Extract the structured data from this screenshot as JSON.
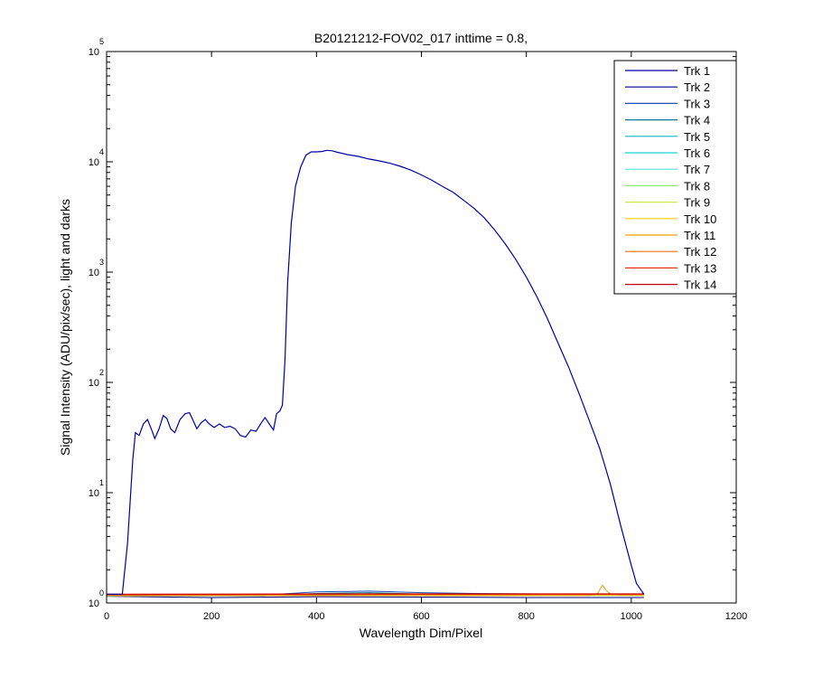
{
  "chart_data": {
    "type": "line",
    "title": "B20121212-FOV02_017 inttime = 0.8,",
    "xlabel": "Wavelength Dim/Pixel",
    "ylabel": "Signal Intensity (ADU/pix/sec), light and darks",
    "xlim": [
      0,
      1200
    ],
    "ylim": [
      1,
      100000
    ],
    "yscale": "log",
    "xticks": [
      0,
      200,
      400,
      600,
      800,
      1000,
      1200
    ],
    "xtick_labels": [
      "0",
      "200",
      "400",
      "600",
      "800",
      "1000",
      "1200"
    ],
    "ytick_labels": [
      {
        "base": "10",
        "exp": "0",
        "value": 1
      },
      {
        "base": "10",
        "exp": "1",
        "value": 10
      },
      {
        "base": "10",
        "exp": "2",
        "value": 100
      },
      {
        "base": "10",
        "exp": "3",
        "value": 1000
      },
      {
        "base": "10",
        "exp": "4",
        "value": 10000
      },
      {
        "base": "10",
        "exp": "5",
        "value": 100000
      }
    ],
    "grid": false,
    "legend_position": "top-right",
    "series": [
      {
        "name": "Trk 1",
        "color": "#0000a0",
        "points": [
          [
            0,
            1.2
          ],
          [
            30,
            1.2
          ],
          [
            40,
            3.5
          ],
          [
            50,
            20
          ],
          [
            55,
            35
          ],
          [
            62,
            33
          ],
          [
            70,
            42
          ],
          [
            78,
            46
          ],
          [
            85,
            38
          ],
          [
            92,
            31
          ],
          [
            100,
            38
          ],
          [
            108,
            50
          ],
          [
            115,
            47
          ],
          [
            122,
            38
          ],
          [
            130,
            35
          ],
          [
            140,
            46
          ],
          [
            150,
            52
          ],
          [
            158,
            53
          ],
          [
            165,
            45
          ],
          [
            172,
            38
          ],
          [
            180,
            43
          ],
          [
            188,
            46
          ],
          [
            196,
            42
          ],
          [
            205,
            39
          ],
          [
            215,
            42
          ],
          [
            225,
            39
          ],
          [
            235,
            40
          ],
          [
            245,
            38
          ],
          [
            255,
            33
          ],
          [
            265,
            32
          ],
          [
            275,
            37
          ],
          [
            285,
            36
          ],
          [
            295,
            43
          ],
          [
            302,
            48
          ],
          [
            310,
            42
          ],
          [
            318,
            37
          ],
          [
            324,
            52
          ],
          [
            330,
            55
          ],
          [
            335,
            62
          ],
          [
            340,
            160
          ],
          [
            345,
            800
          ],
          [
            352,
            2800
          ],
          [
            360,
            6000
          ],
          [
            370,
            9000
          ],
          [
            380,
            11500
          ],
          [
            390,
            12300
          ],
          [
            400,
            12300
          ],
          [
            410,
            12400
          ],
          [
            420,
            12700
          ],
          [
            430,
            12600
          ],
          [
            440,
            12200
          ],
          [
            460,
            11600
          ],
          [
            480,
            11200
          ],
          [
            500,
            10600
          ],
          [
            520,
            10200
          ],
          [
            540,
            9700
          ],
          [
            560,
            9100
          ],
          [
            580,
            8400
          ],
          [
            600,
            7600
          ],
          [
            620,
            6800
          ],
          [
            640,
            6000
          ],
          [
            660,
            5300
          ],
          [
            680,
            4500
          ],
          [
            700,
            3800
          ],
          [
            720,
            3100
          ],
          [
            740,
            2400
          ],
          [
            760,
            1800
          ],
          [
            780,
            1300
          ],
          [
            800,
            900
          ],
          [
            820,
            600
          ],
          [
            840,
            380
          ],
          [
            860,
            230
          ],
          [
            880,
            140
          ],
          [
            900,
            80
          ],
          [
            920,
            45
          ],
          [
            940,
            25
          ],
          [
            960,
            12
          ],
          [
            980,
            5
          ],
          [
            1000,
            2.2
          ],
          [
            1010,
            1.5
          ],
          [
            1024,
            1.2
          ]
        ]
      },
      {
        "name": "Trk 2",
        "color": "#00008b",
        "points": [
          [
            0,
            1.15
          ],
          [
            200,
            1.12
          ],
          [
            400,
            1.14
          ],
          [
            600,
            1.13
          ],
          [
            800,
            1.12
          ],
          [
            1024,
            1.12
          ]
        ]
      },
      {
        "name": "Trk 3",
        "color": "#1e50b4",
        "points": [
          [
            0,
            1.18
          ],
          [
            300,
            1.18
          ],
          [
            400,
            1.26
          ],
          [
            500,
            1.28
          ],
          [
            600,
            1.24
          ],
          [
            700,
            1.22
          ],
          [
            900,
            1.2
          ],
          [
            1024,
            1.19
          ]
        ]
      },
      {
        "name": "Trk 4",
        "color": "#0a7896",
        "points": [
          [
            0,
            1.16
          ],
          [
            300,
            1.16
          ],
          [
            400,
            1.22
          ],
          [
            500,
            1.24
          ],
          [
            600,
            1.2
          ],
          [
            800,
            1.18
          ],
          [
            1024,
            1.17
          ]
        ]
      },
      {
        "name": "Trk 5",
        "color": "#14b4c8",
        "points": [
          [
            0,
            1.17
          ],
          [
            300,
            1.17
          ],
          [
            400,
            1.2
          ],
          [
            500,
            1.21
          ],
          [
            600,
            1.19
          ],
          [
            1024,
            1.18
          ]
        ]
      },
      {
        "name": "Trk 6",
        "color": "#1ed2d2",
        "points": [
          [
            0,
            1.17
          ],
          [
            500,
            1.19
          ],
          [
            1024,
            1.18
          ]
        ]
      },
      {
        "name": "Trk 7",
        "color": "#50e6dc",
        "points": [
          [
            0,
            1.16
          ],
          [
            500,
            1.18
          ],
          [
            1024,
            1.17
          ]
        ]
      },
      {
        "name": "Trk 8",
        "color": "#96e678",
        "points": [
          [
            0,
            1.16
          ],
          [
            500,
            1.17
          ],
          [
            1024,
            1.17
          ]
        ]
      },
      {
        "name": "Trk 9",
        "color": "#d2e650",
        "points": [
          [
            0,
            1.16
          ],
          [
            500,
            1.17
          ],
          [
            1024,
            1.17
          ]
        ]
      },
      {
        "name": "Trk 10",
        "color": "#f0d200",
        "points": [
          [
            0,
            1.17
          ],
          [
            500,
            1.18
          ],
          [
            1024,
            1.18
          ]
        ]
      },
      {
        "name": "Trk 11",
        "color": "#f0a000",
        "points": [
          [
            0,
            1.17
          ],
          [
            920,
            1.17
          ],
          [
            935,
            1.2
          ],
          [
            945,
            1.45
          ],
          [
            952,
            1.3
          ],
          [
            960,
            1.2
          ],
          [
            975,
            1.18
          ],
          [
            1024,
            1.18
          ]
        ]
      },
      {
        "name": "Trk 12",
        "color": "#f06e14",
        "points": [
          [
            0,
            1.18
          ],
          [
            500,
            1.19
          ],
          [
            1024,
            1.19
          ]
        ]
      },
      {
        "name": "Trk 13",
        "color": "#e63214",
        "points": [
          [
            0,
            1.19
          ],
          [
            500,
            1.2
          ],
          [
            1024,
            1.2
          ]
        ]
      },
      {
        "name": "Trk 14",
        "color": "#c80000",
        "points": [
          [
            0,
            1.2
          ],
          [
            500,
            1.21
          ],
          [
            1024,
            1.21
          ]
        ]
      }
    ]
  }
}
